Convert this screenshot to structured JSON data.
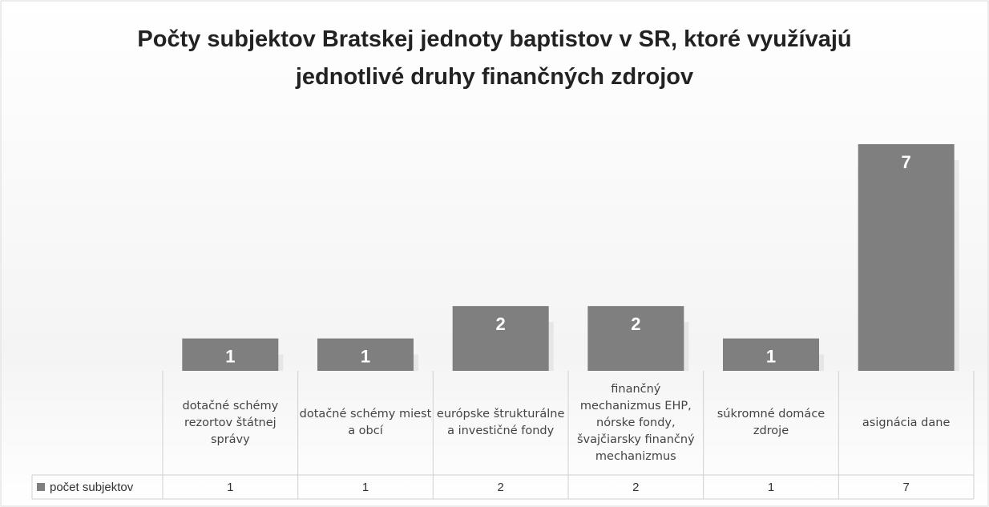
{
  "chart_data": {
    "type": "bar",
    "title": "Počty subjektov Bratskej jednoty baptistov v SR, ktoré využívajú jednotlivé druhy finančných zdrojov",
    "categories": [
      "dotačné schémy rezortov štátnej správy",
      "dotačné schémy miest a obcí",
      "európske štrukturálne a investičné fondy",
      "finančný mechanizmus EHP, nórske fondy, švajčiarsky finančný mechanizmus",
      "súkromné domáce zdroje",
      "asignácia dane"
    ],
    "series": [
      {
        "name": "počet subjektov",
        "color": "#7f7f7f",
        "values": [
          1,
          1,
          2,
          2,
          1,
          7
        ]
      }
    ]
  }
}
